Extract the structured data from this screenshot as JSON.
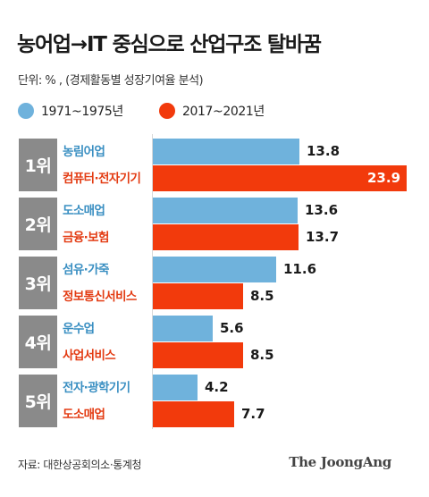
{
  "title": "농어업→IT 중심으로 산업구조 탈바꿈",
  "unit_note": "단위: % , (경제활동별 성장기여율 분석)",
  "source": "자료: 대한상공회의소·통계청",
  "brand": "The JoongAng",
  "colors": {
    "series1": "#6fb2dc",
    "series2": "#f23a0c",
    "rank_block": "#8a8a8a"
  },
  "chart_data": {
    "type": "bar",
    "orientation": "horizontal",
    "title": "농어업→IT 중심으로 산업구조 탈바꿈",
    "unit": "%",
    "legend_position": "top-left",
    "grid": false,
    "xlim": [
      0,
      24
    ],
    "series": [
      {
        "name": "1971~1975년",
        "color": "#6fb2dc",
        "categories": [
          "농림어업",
          "도소매업",
          "섬유·가죽",
          "운수업",
          "전자·광학기기"
        ],
        "values": [
          13.8,
          13.6,
          11.6,
          5.6,
          4.2
        ]
      },
      {
        "name": "2017~2021년",
        "color": "#f23a0c",
        "categories": [
          "컴퓨터·전자기기",
          "금융·보험",
          "정보통신서비스",
          "사업서비스",
          "도소매업"
        ],
        "values": [
          23.9,
          13.7,
          8.5,
          8.5,
          7.7
        ]
      }
    ],
    "ranks": [
      "1위",
      "2위",
      "3위",
      "4위",
      "5위"
    ]
  }
}
